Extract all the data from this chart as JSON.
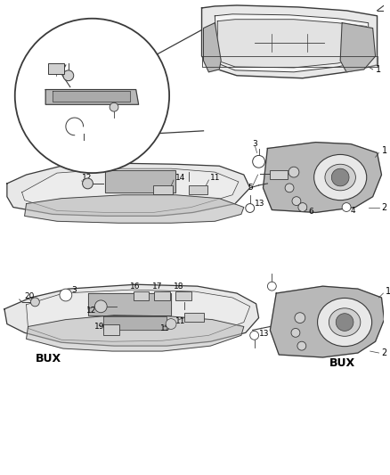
{
  "bg_color": "#ffffff",
  "lc": "#3a3a3a",
  "tc": "#000000",
  "fig_width": 4.38,
  "fig_height": 5.33,
  "dpi": 100
}
